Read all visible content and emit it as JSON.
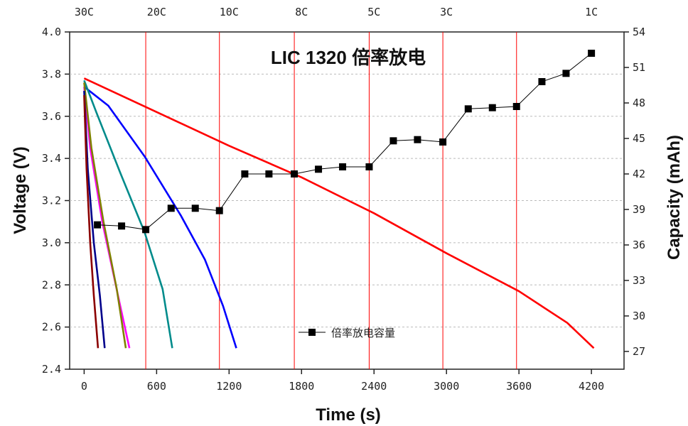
{
  "chart_data": {
    "type": "line",
    "title": "LIC 1320 倍率放电",
    "xlabel": "Time (s)",
    "ylabel": "Voltage (V)",
    "y2label": "Capacity (mAh)",
    "xlim": [
      -120,
      4470
    ],
    "ylim": [
      2.4,
      4.0
    ],
    "y2lim": [
      25.5,
      54
    ],
    "x_ticks": [
      0,
      600,
      1200,
      1800,
      2400,
      3000,
      3600,
      4200
    ],
    "y_ticks": [
      "2.4",
      "2.6",
      "2.8",
      "3.0",
      "3.2",
      "3.4",
      "3.6",
      "3.8",
      "4.0"
    ],
    "y2_ticks": [
      27,
      30,
      33,
      36,
      39,
      42,
      45,
      48,
      51,
      54
    ],
    "grid": "dashed horizontal",
    "rate_labels": [
      {
        "label": "30C",
        "x": 0
      },
      {
        "label": "20C",
        "x": 600
      },
      {
        "label": "10C",
        "x": 1200
      },
      {
        "label": "8C",
        "x": 1800
      },
      {
        "label": "5C",
        "x": 2400
      },
      {
        "label": "3C",
        "x": 3000
      },
      {
        "label": "1C",
        "x": 4200
      }
    ],
    "rate_boundaries": [
      510,
      1120,
      1740,
      2360,
      2970,
      3580
    ],
    "series": [
      {
        "color": "#ff0000",
        "points": [
          [
            0,
            3.78
          ],
          [
            600,
            3.62
          ],
          [
            1200,
            3.46
          ],
          [
            1800,
            3.31
          ],
          [
            2400,
            3.14
          ],
          [
            3000,
            2.95
          ],
          [
            3600,
            2.77
          ],
          [
            4000,
            2.62
          ],
          [
            4220,
            2.5
          ]
        ]
      },
      {
        "color": "#0000ff",
        "points": [
          [
            0,
            3.74
          ],
          [
            200,
            3.65
          ],
          [
            500,
            3.41
          ],
          [
            800,
            3.13
          ],
          [
            1000,
            2.92
          ],
          [
            1150,
            2.7
          ],
          [
            1260,
            2.5
          ]
        ]
      },
      {
        "color": "#008b8b",
        "points": [
          [
            0,
            3.77
          ],
          [
            100,
            3.62
          ],
          [
            300,
            3.33
          ],
          [
            500,
            3.05
          ],
          [
            650,
            2.78
          ],
          [
            730,
            2.5
          ]
        ]
      },
      {
        "color": "#ff00ff",
        "points": [
          [
            0,
            3.74
          ],
          [
            50,
            3.45
          ],
          [
            150,
            3.1
          ],
          [
            280,
            2.75
          ],
          [
            375,
            2.5
          ]
        ]
      },
      {
        "color": "#808000",
        "points": [
          [
            0,
            3.76
          ],
          [
            60,
            3.45
          ],
          [
            160,
            3.1
          ],
          [
            270,
            2.78
          ],
          [
            345,
            2.5
          ]
        ]
      },
      {
        "color": "#00008b",
        "points": [
          [
            0,
            3.72
          ],
          [
            30,
            3.35
          ],
          [
            80,
            3.0
          ],
          [
            130,
            2.75
          ],
          [
            170,
            2.5
          ]
        ]
      },
      {
        "color": "#8b0000",
        "points": [
          [
            0,
            3.7
          ],
          [
            20,
            3.35
          ],
          [
            50,
            3.0
          ],
          [
            80,
            2.75
          ],
          [
            115,
            2.5
          ]
        ]
      }
    ],
    "capacity_series": {
      "name": "倍率放电容量",
      "color": "#000000",
      "points": [
        [
          110,
          37.7
        ],
        [
          310,
          37.6
        ],
        [
          510,
          37.3
        ],
        [
          720,
          39.1
        ],
        [
          920,
          39.1
        ],
        [
          1120,
          38.9
        ],
        [
          1330,
          42.0
        ],
        [
          1530,
          42.0
        ],
        [
          1740,
          42.0
        ],
        [
          1940,
          42.4
        ],
        [
          2140,
          42.6
        ],
        [
          2360,
          42.6
        ],
        [
          2560,
          44.8
        ],
        [
          2760,
          44.9
        ],
        [
          2970,
          44.7
        ],
        [
          3180,
          47.5
        ],
        [
          3380,
          47.6
        ],
        [
          3580,
          47.7
        ],
        [
          3790,
          49.8
        ],
        [
          3990,
          50.5
        ],
        [
          4200,
          52.2
        ]
      ]
    },
    "legend_position": "lower-middle"
  }
}
